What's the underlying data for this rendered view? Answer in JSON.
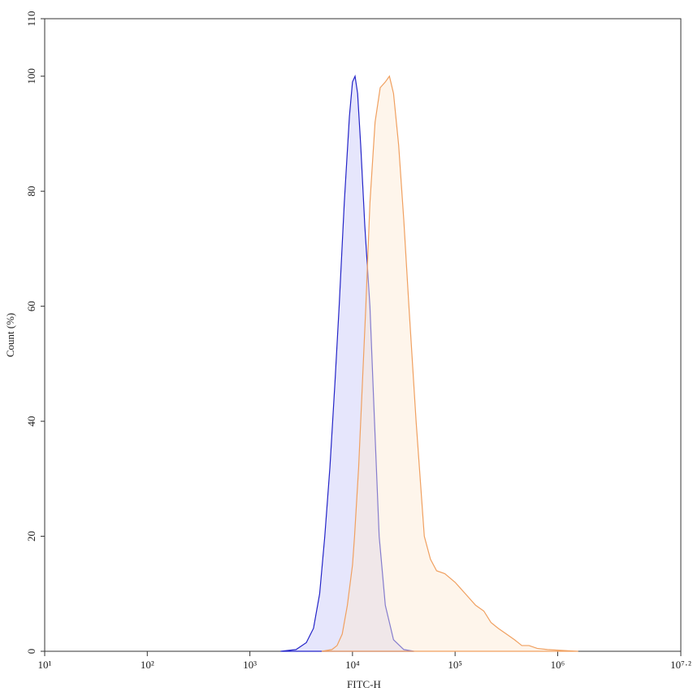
{
  "chart_data": {
    "type": "histogram-overlay",
    "x_label": "FITC-H",
    "y_label": "Count (%)",
    "xscale": "log",
    "xlim": [
      10,
      15848931.92
    ],
    "xticks": [
      {
        "value": 10,
        "label": "10¹"
      },
      {
        "value": 100,
        "label": "10²"
      },
      {
        "value": 1000,
        "label": "10³"
      },
      {
        "value": 10000,
        "label": "10⁴"
      },
      {
        "value": 100000,
        "label": "10⁵"
      },
      {
        "value": 1000000,
        "label": "10⁶"
      },
      {
        "value": 15848931.92,
        "label": "10⁷·²"
      }
    ],
    "ylim": [
      0,
      110
    ],
    "yticks": [
      0,
      20,
      40,
      60,
      80,
      100,
      110
    ],
    "series": [
      {
        "color": "#2424c8",
        "fill": "rgba(205,205,250,0.5)",
        "x": [
          1995,
          2818,
          3548,
          4169,
          4786,
          5370,
          6026,
          6761,
          7413,
          8318,
          9333,
          10000,
          10593,
          11220,
          12023,
          13183,
          14791,
          16218,
          18197,
          20893,
          25119,
          31623,
          39811
        ],
        "values": [
          0,
          0.3,
          1.5,
          4,
          10,
          20,
          32,
          47,
          60,
          78,
          93,
          99,
          100,
          97,
          88,
          74,
          60,
          42,
          20,
          8,
          2,
          0.3,
          0
        ]
      },
      {
        "color": "#f0a060",
        "fill": "rgba(252,232,210,0.45)",
        "x": [
          5012,
          6310,
          7079,
          7943,
          8913,
          10000,
          10471,
          11482,
          12589,
          13490,
          14791,
          16596,
          18621,
          20893,
          22909,
          25119,
          28184,
          31623,
          35481,
          41687,
          50119,
          57544,
          66069,
          79433,
          100000,
          112202,
          125893,
          158489,
          190546,
          223872,
          263027,
          316228,
          380189,
          446684,
          524807,
          630957,
          794328,
          1000000,
          1258925,
          1584893
        ],
        "values": [
          0,
          0.3,
          1,
          3,
          8,
          15,
          20,
          32,
          48,
          60,
          78,
          92,
          98,
          99,
          100,
          97,
          88,
          75,
          60,
          40,
          20,
          16,
          14,
          13.5,
          12,
          11,
          10,
          8,
          7,
          5,
          4,
          3,
          2,
          1,
          1,
          0.5,
          0.3,
          0.2,
          0.1,
          0
        ]
      }
    ]
  }
}
